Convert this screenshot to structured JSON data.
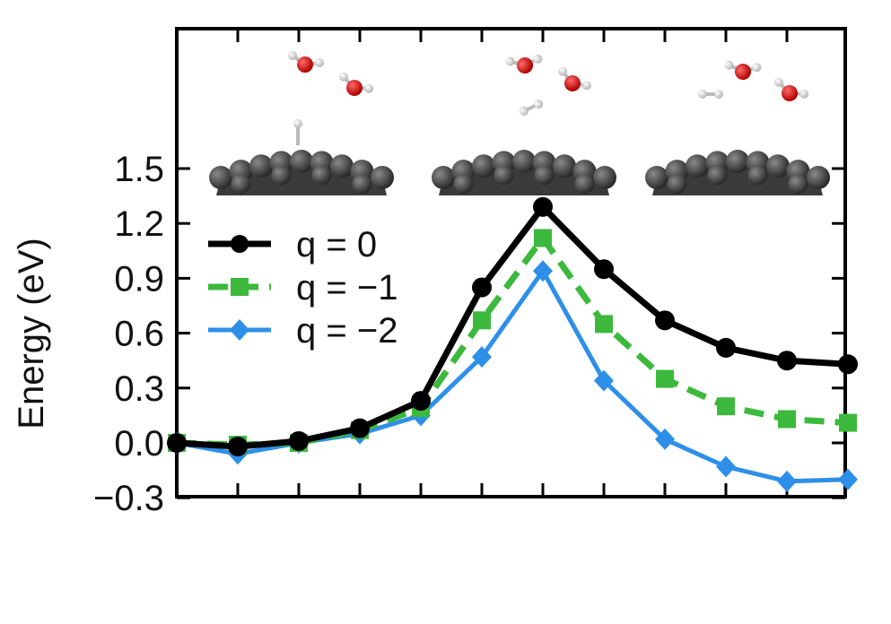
{
  "chart_data": {
    "type": "line",
    "title": "",
    "xlabel": "",
    "ylabel": "Energy (eV)",
    "x": [
      0,
      1,
      2,
      3,
      4,
      5,
      6,
      7,
      8,
      9,
      10,
      11
    ],
    "xlim": [
      0,
      11
    ],
    "ylim": [
      -0.3,
      1.5
    ],
    "yticks": [
      -0.3,
      0.0,
      0.3,
      0.6,
      0.9,
      1.2,
      1.5
    ],
    "ytick_labels": [
      "−0.3",
      "0.0",
      "0.3",
      "0.6",
      "0.9",
      "1.2",
      "1.5"
    ],
    "grid": false,
    "legend_position": "center-left",
    "series": [
      {
        "name": "q = 0",
        "color": "#000000",
        "marker": "circle",
        "dash": "solid",
        "values": [
          0.0,
          -0.02,
          0.01,
          0.08,
          0.23,
          0.85,
          1.29,
          0.95,
          0.67,
          0.52,
          0.45,
          0.43
        ]
      },
      {
        "name": "q = −1",
        "color": "#3cb93c",
        "marker": "square",
        "dash": "dashed",
        "values": [
          0.0,
          -0.01,
          0.0,
          0.07,
          0.19,
          0.67,
          1.12,
          0.65,
          0.35,
          0.2,
          0.13,
          0.11
        ]
      },
      {
        "name": "q = −2",
        "color": "#2e8fe8",
        "marker": "diamond",
        "dash": "solid",
        "values": [
          0.0,
          -0.06,
          0.0,
          0.05,
          0.15,
          0.47,
          0.94,
          0.34,
          0.02,
          -0.13,
          -0.21,
          -0.2
        ]
      }
    ],
    "insets": [
      {
        "name": "initial-state-structure",
        "description": "graphene sheet with H2O molecules above"
      },
      {
        "name": "transition-state-structure",
        "description": "graphene sheet with H2O and H2"
      },
      {
        "name": "final-state-structure",
        "description": "graphene sheet with H2O and H2 released"
      }
    ]
  }
}
